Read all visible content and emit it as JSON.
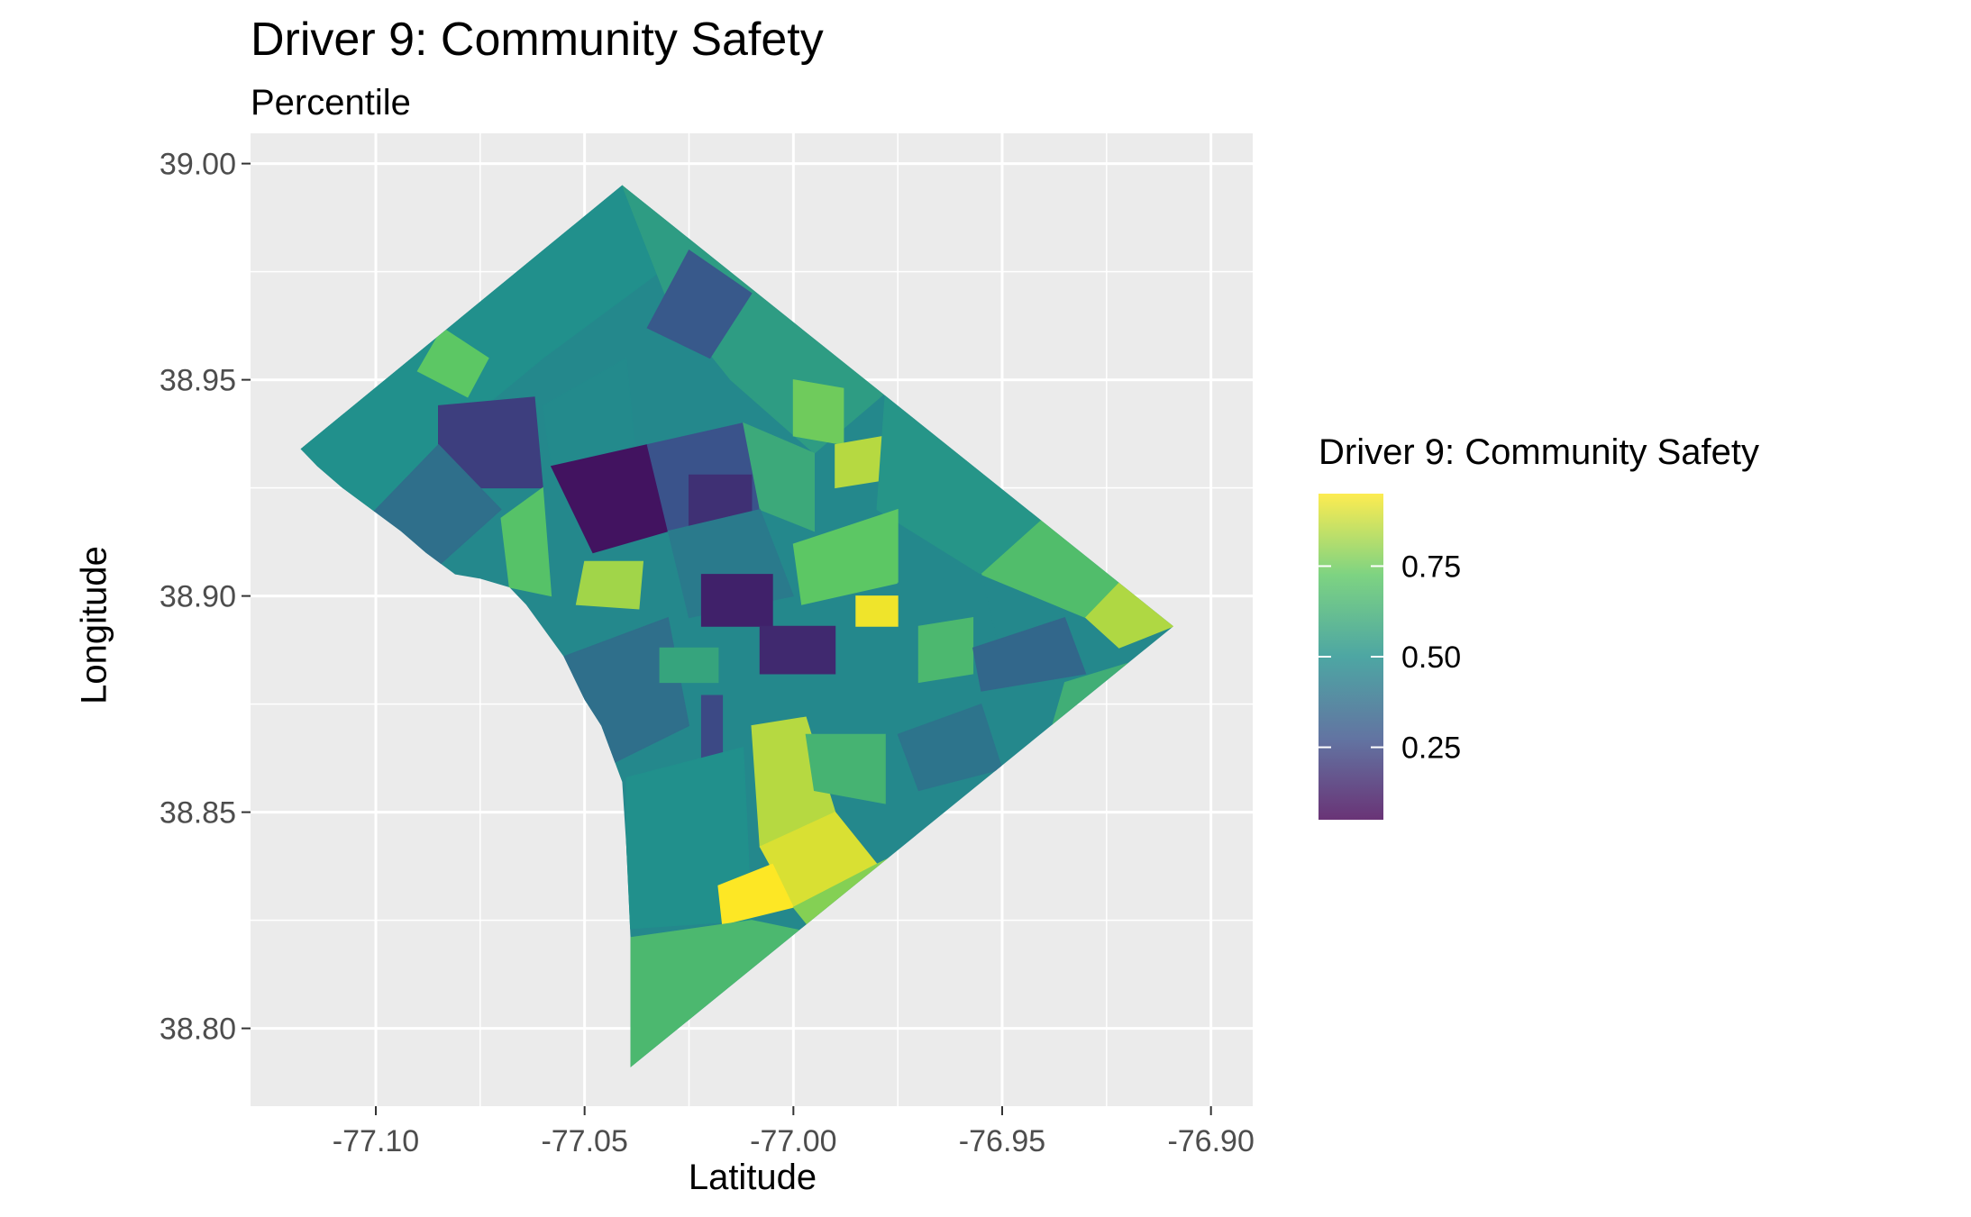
{
  "title": "Driver 9: Community Safety",
  "subtitle": "Percentile",
  "colors": {
    "panel_background": "#ebebeb",
    "grid": "#ffffff",
    "palette": [
      "#440154",
      "#3b528b",
      "#21908c",
      "#5dc863",
      "#fde725"
    ],
    "fill_alpha": 0.8
  },
  "chart_data": {
    "type": "choropleth",
    "xlabel": "Latitude",
    "ylabel": "Longitude",
    "xlim": [
      -77.13,
      -76.89
    ],
    "ylim": [
      38.782,
      39.007
    ],
    "x_ticks": [
      -77.1,
      -77.05,
      -77.0,
      -76.95,
      -76.9
    ],
    "x_tick_labels": [
      "-77.10",
      "-77.05",
      "-77.00",
      "-76.95",
      "-76.90"
    ],
    "y_ticks": [
      38.8,
      38.85,
      38.9,
      38.95,
      39.0
    ],
    "y_tick_labels": [
      "38.80",
      "38.85",
      "38.90",
      "38.95",
      "39.00"
    ],
    "grid": true,
    "legend": {
      "title": "Driver 9: Community Safety",
      "placement": "right",
      "range": [
        0.05,
        0.95
      ],
      "ticks": [
        0.25,
        0.5,
        0.75
      ],
      "tick_labels": [
        "0.25",
        "0.50",
        "0.75"
      ]
    },
    "outline": [
      [
        -77.118,
        38.934
      ],
      [
        -77.041,
        38.995
      ],
      [
        -76.909,
        38.893
      ],
      [
        -77.039,
        38.791
      ],
      [
        -77.039,
        38.821
      ],
      [
        -77.04,
        38.842
      ],
      [
        -77.041,
        38.857
      ],
      [
        -77.046,
        38.87
      ],
      [
        -77.05,
        38.876
      ],
      [
        -77.055,
        38.886
      ],
      [
        -77.064,
        38.898
      ],
      [
        -77.068,
        38.902
      ],
      [
        -77.075,
        38.904
      ],
      [
        -77.081,
        38.905
      ],
      [
        -77.088,
        38.91
      ],
      [
        -77.094,
        38.915
      ],
      [
        -77.101,
        38.92
      ],
      [
        -77.108,
        38.925
      ],
      [
        -77.114,
        38.93
      ]
    ],
    "regions": [
      {
        "poly": [
          [
            -77.118,
            38.934
          ],
          [
            -77.041,
            38.995
          ],
          [
            -77.025,
            38.98
          ],
          [
            -77.06,
            38.955
          ],
          [
            -77.085,
            38.935
          ],
          [
            -77.102,
            38.918
          ],
          [
            -77.112,
            38.926
          ]
        ],
        "value": 0.5
      },
      {
        "poly": [
          [
            -77.041,
            38.995
          ],
          [
            -76.978,
            38.947
          ],
          [
            -76.995,
            38.933
          ],
          [
            -77.015,
            38.95
          ],
          [
            -77.03,
            38.968
          ]
        ],
        "value": 0.55
      },
      {
        "poly": [
          [
            -77.025,
            38.98
          ],
          [
            -77.01,
            38.97
          ],
          [
            -77.02,
            38.955
          ],
          [
            -77.035,
            38.962
          ]
        ],
        "value": 0.3
      },
      {
        "poly": [
          [
            -77.084,
            38.962
          ],
          [
            -77.073,
            38.955
          ],
          [
            -77.078,
            38.946
          ],
          [
            -77.09,
            38.952
          ]
        ],
        "value": 0.72
      },
      {
        "poly": [
          [
            -77.085,
            38.944
          ],
          [
            -77.062,
            38.946
          ],
          [
            -77.06,
            38.925
          ],
          [
            -77.085,
            38.925
          ]
        ],
        "value": 0.22
      },
      {
        "poly": [
          [
            -77.06,
            38.944
          ],
          [
            -77.04,
            38.955
          ],
          [
            -77.038,
            38.935
          ],
          [
            -77.058,
            38.93
          ]
        ],
        "value": 0.48
      },
      {
        "poly": [
          [
            -77.102,
            38.918
          ],
          [
            -77.085,
            38.935
          ],
          [
            -77.07,
            38.92
          ],
          [
            -77.085,
            38.907
          ]
        ],
        "value": 0.38
      },
      {
        "poly": [
          [
            -77.07,
            38.918
          ],
          [
            -77.06,
            38.925
          ],
          [
            -77.058,
            38.9
          ],
          [
            -77.068,
            38.902
          ]
        ],
        "value": 0.7
      },
      {
        "poly": [
          [
            -77.058,
            38.93
          ],
          [
            -77.035,
            38.935
          ],
          [
            -77.03,
            38.915
          ],
          [
            -77.048,
            38.91
          ]
        ],
        "value": 0.1
      },
      {
        "poly": [
          [
            -77.05,
            38.908
          ],
          [
            -77.036,
            38.908
          ],
          [
            -77.037,
            38.897
          ],
          [
            -77.052,
            38.898
          ]
        ],
        "value": 0.82
      },
      {
        "poly": [
          [
            -77.035,
            38.935
          ],
          [
            -77.012,
            38.94
          ],
          [
            -77.008,
            38.92
          ],
          [
            -77.03,
            38.915
          ]
        ],
        "value": 0.28
      },
      {
        "poly": [
          [
            -77.012,
            38.94
          ],
          [
            -76.995,
            38.933
          ],
          [
            -76.995,
            38.915
          ],
          [
            -77.008,
            38.92
          ]
        ],
        "value": 0.6
      },
      {
        "poly": [
          [
            -77.025,
            38.928
          ],
          [
            -77.01,
            38.928
          ],
          [
            -77.01,
            38.915
          ],
          [
            -77.025,
            38.915
          ]
        ],
        "value": 0.18
      },
      {
        "poly": [
          [
            -77.0,
            38.95
          ],
          [
            -76.988,
            38.948
          ],
          [
            -76.988,
            38.935
          ],
          [
            -77.0,
            38.937
          ]
        ],
        "value": 0.75
      },
      {
        "poly": [
          [
            -76.99,
            38.935
          ],
          [
            -76.978,
            38.937
          ],
          [
            -76.977,
            38.927
          ],
          [
            -76.99,
            38.925
          ]
        ],
        "value": 0.85
      },
      {
        "poly": [
          [
            -76.978,
            38.947
          ],
          [
            -76.94,
            38.918
          ],
          [
            -76.955,
            38.905
          ],
          [
            -76.98,
            38.92
          ]
        ],
        "value": 0.52
      },
      {
        "poly": [
          [
            -76.94,
            38.918
          ],
          [
            -76.92,
            38.905
          ],
          [
            -76.93,
            38.895
          ],
          [
            -76.955,
            38.905
          ]
        ],
        "value": 0.68
      },
      {
        "poly": [
          [
            -76.92,
            38.905
          ],
          [
            -76.909,
            38.893
          ],
          [
            -76.922,
            38.888
          ],
          [
            -76.93,
            38.895
          ]
        ],
        "value": 0.84
      },
      {
        "poly": [
          [
            -77.03,
            38.915
          ],
          [
            -77.008,
            38.92
          ],
          [
            -77.0,
            38.9
          ],
          [
            -77.025,
            38.895
          ]
        ],
        "value": 0.42
      },
      {
        "poly": [
          [
            -77.022,
            38.905
          ],
          [
            -77.005,
            38.905
          ],
          [
            -77.005,
            38.893
          ],
          [
            -77.022,
            38.893
          ]
        ],
        "value": 0.14
      },
      {
        "poly": [
          [
            -77.0,
            38.912
          ],
          [
            -76.975,
            38.92
          ],
          [
            -76.975,
            38.903
          ],
          [
            -76.998,
            38.898
          ]
        ],
        "value": 0.72
      },
      {
        "poly": [
          [
            -76.985,
            38.9
          ],
          [
            -76.975,
            38.9
          ],
          [
            -76.975,
            38.893
          ],
          [
            -76.985,
            38.893
          ]
        ],
        "value": 0.93
      },
      {
        "poly": [
          [
            -77.008,
            38.893
          ],
          [
            -76.99,
            38.893
          ],
          [
            -76.99,
            38.882
          ],
          [
            -77.008,
            38.882
          ]
        ],
        "value": 0.16
      },
      {
        "poly": [
          [
            -76.975,
            38.903
          ],
          [
            -76.955,
            38.905
          ],
          [
            -76.95,
            38.885
          ],
          [
            -76.972,
            38.882
          ]
        ],
        "value": 0.47
      },
      {
        "poly": [
          [
            -76.97,
            38.893
          ],
          [
            -76.957,
            38.895
          ],
          [
            -76.957,
            38.882
          ],
          [
            -76.97,
            38.88
          ]
        ],
        "value": 0.66
      },
      {
        "poly": [
          [
            -76.957,
            38.888
          ],
          [
            -76.935,
            38.895
          ],
          [
            -76.93,
            38.882
          ],
          [
            -76.955,
            38.878
          ]
        ],
        "value": 0.35
      },
      {
        "poly": [
          [
            -76.935,
            38.88
          ],
          [
            -76.918,
            38.885
          ],
          [
            -76.925,
            38.872
          ],
          [
            -76.938,
            38.87
          ]
        ],
        "value": 0.62
      },
      {
        "poly": [
          [
            -77.055,
            38.886
          ],
          [
            -77.03,
            38.895
          ],
          [
            -77.025,
            38.87
          ],
          [
            -77.046,
            38.86
          ],
          [
            -77.05,
            38.876
          ]
        ],
        "value": 0.38
      },
      {
        "poly": [
          [
            -77.032,
            38.888
          ],
          [
            -77.018,
            38.888
          ],
          [
            -77.018,
            38.88
          ],
          [
            -77.032,
            38.88
          ]
        ],
        "value": 0.58
      },
      {
        "poly": [
          [
            -77.022,
            38.877
          ],
          [
            -77.017,
            38.877
          ],
          [
            -77.017,
            38.86
          ],
          [
            -77.022,
            38.86
          ]
        ],
        "value": 0.25
      },
      {
        "poly": [
          [
            -77.04,
            38.858
          ],
          [
            -77.012,
            38.865
          ],
          [
            -77.01,
            38.825
          ],
          [
            -77.04,
            38.823
          ]
        ],
        "value": 0.5
      },
      {
        "poly": [
          [
            -77.01,
            38.87
          ],
          [
            -76.997,
            38.872
          ],
          [
            -76.99,
            38.85
          ],
          [
            -77.008,
            38.842
          ]
        ],
        "value": 0.85
      },
      {
        "poly": [
          [
            -77.008,
            38.842
          ],
          [
            -76.99,
            38.85
          ],
          [
            -76.98,
            38.838
          ],
          [
            -77.0,
            38.828
          ]
        ],
        "value": 0.9
      },
      {
        "poly": [
          [
            -77.018,
            38.833
          ],
          [
            -77.005,
            38.838
          ],
          [
            -77.0,
            38.828
          ],
          [
            -77.017,
            38.824
          ]
        ],
        "value": 0.95
      },
      {
        "poly": [
          [
            -76.997,
            38.868
          ],
          [
            -76.978,
            38.868
          ],
          [
            -76.978,
            38.852
          ],
          [
            -76.995,
            38.855
          ]
        ],
        "value": 0.64
      },
      {
        "poly": [
          [
            -76.98,
            38.838
          ],
          [
            -76.965,
            38.845
          ],
          [
            -76.995,
            38.822
          ],
          [
            -77.0,
            38.828
          ]
        ],
        "value": 0.78
      },
      {
        "poly": [
          [
            -76.975,
            38.868
          ],
          [
            -76.955,
            38.875
          ],
          [
            -76.95,
            38.86
          ],
          [
            -76.97,
            38.855
          ]
        ],
        "value": 0.4
      },
      {
        "poly": [
          [
            -77.039,
            38.821
          ],
          [
            -77.01,
            38.825
          ],
          [
            -76.995,
            38.822
          ],
          [
            -77.039,
            38.791
          ]
        ],
        "value": 0.66
      }
    ]
  }
}
